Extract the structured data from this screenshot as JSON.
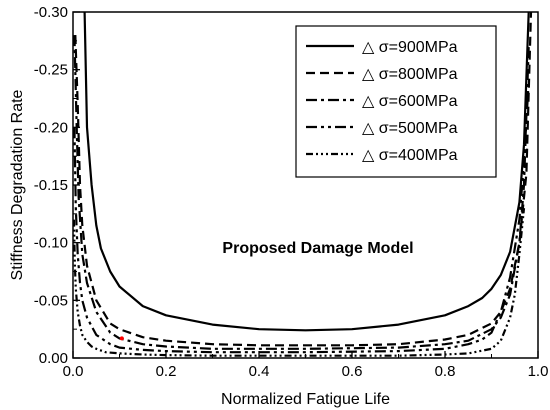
{
  "chart_data": {
    "type": "line",
    "title": "",
    "xlabel": "Normalized Fatigue Life",
    "ylabel": "Stiffness Degradation Rate",
    "xlim": [
      0.0,
      1.0
    ],
    "ylim": [
      0.0,
      -0.3
    ],
    "y_axis_inverted": true,
    "x_ticks": [
      "0.0",
      "0.2",
      "0.4",
      "0.6",
      "0.8",
      "1.0"
    ],
    "y_ticks": [
      "0.00",
      "-0.05",
      "-0.10",
      "-0.15",
      "-0.20",
      "-0.25",
      "-0.30"
    ],
    "grid": false,
    "legend_position": "top-right",
    "annotation": "Proposed Damage Model",
    "series": [
      {
        "name": "△ σ=900MPa",
        "dash": "solid",
        "x": [
          0.025,
          0.03,
          0.04,
          0.05,
          0.06,
          0.08,
          0.1,
          0.15,
          0.2,
          0.3,
          0.4,
          0.5,
          0.6,
          0.7,
          0.8,
          0.85,
          0.88,
          0.9,
          0.92,
          0.94,
          0.96,
          0.97,
          0.98
        ],
        "y": [
          -0.3,
          -0.2,
          -0.15,
          -0.115,
          -0.095,
          -0.075,
          -0.062,
          -0.045,
          -0.037,
          -0.029,
          -0.025,
          -0.024,
          -0.025,
          -0.029,
          -0.037,
          -0.045,
          -0.052,
          -0.06,
          -0.072,
          -0.092,
          -0.135,
          -0.185,
          -0.3
        ]
      },
      {
        "name": "△ σ=800MPa",
        "dash": "dash",
        "x": [
          0.005,
          0.01,
          0.015,
          0.02,
          0.03,
          0.05,
          0.08,
          0.1,
          0.15,
          0.2,
          0.3,
          0.4,
          0.5,
          0.6,
          0.7,
          0.8,
          0.85,
          0.9,
          0.92,
          0.94,
          0.96,
          0.975,
          0.985
        ],
        "y": [
          -0.28,
          -0.22,
          -0.15,
          -0.115,
          -0.08,
          -0.05,
          -0.03,
          -0.025,
          -0.018,
          -0.015,
          -0.012,
          -0.011,
          -0.011,
          -0.011,
          -0.012,
          -0.016,
          -0.02,
          -0.03,
          -0.04,
          -0.06,
          -0.1,
          -0.16,
          -0.3
        ]
      },
      {
        "name": "△ σ=600MPa",
        "dash": "dashdot",
        "x": [
          0.003,
          0.008,
          0.012,
          0.02,
          0.03,
          0.05,
          0.08,
          0.1,
          0.15,
          0.2,
          0.3,
          0.5,
          0.7,
          0.8,
          0.85,
          0.9,
          0.92,
          0.94,
          0.96,
          0.97,
          0.98
        ],
        "y": [
          -0.28,
          -0.2,
          -0.14,
          -0.09,
          -0.065,
          -0.04,
          -0.022,
          -0.017,
          -0.012,
          -0.01,
          -0.008,
          -0.008,
          -0.009,
          -0.012,
          -0.015,
          -0.025,
          -0.035,
          -0.055,
          -0.1,
          -0.15,
          -0.27
        ]
      },
      {
        "name": "△ σ=500MPa",
        "dash": "dashdotdot",
        "x": [
          0.003,
          0.006,
          0.01,
          0.015,
          0.02,
          0.03,
          0.05,
          0.08,
          0.1,
          0.15,
          0.2,
          0.3,
          0.5,
          0.7,
          0.8,
          0.85,
          0.88,
          0.9,
          0.92,
          0.94,
          0.96,
          0.97,
          0.98
        ],
        "y": [
          -0.2,
          -0.13,
          -0.09,
          -0.065,
          -0.05,
          -0.035,
          -0.02,
          -0.012,
          -0.009,
          -0.007,
          -0.006,
          -0.005,
          -0.005,
          -0.006,
          -0.008,
          -0.012,
          -0.016,
          -0.022,
          -0.04,
          -0.07,
          -0.12,
          -0.17,
          -0.24
        ]
      },
      {
        "name": "△ σ=400MPa",
        "dash": "dashdotdotdot",
        "x": [
          0.002,
          0.004,
          0.006,
          0.01,
          0.015,
          0.02,
          0.03,
          0.04,
          0.05,
          0.07,
          0.1,
          0.15,
          0.2,
          0.3,
          0.5,
          0.7,
          0.8,
          0.85,
          0.9,
          0.92,
          0.94,
          0.95,
          0.96,
          0.97
        ],
        "y": [
          -0.12,
          -0.08,
          -0.06,
          -0.04,
          -0.028,
          -0.02,
          -0.014,
          -0.01,
          -0.008,
          -0.005,
          -0.004,
          -0.003,
          -0.0025,
          -0.002,
          -0.002,
          -0.002,
          -0.003,
          -0.004,
          -0.008,
          -0.015,
          -0.035,
          -0.055,
          -0.09,
          -0.13
        ]
      }
    ],
    "marker_points": [
      {
        "x": 0.105,
        "y": -0.017,
        "color": "#ff0000"
      }
    ]
  },
  "colors": {
    "line": "#000000",
    "marker": "#ff0000",
    "background": "#ffffff"
  }
}
